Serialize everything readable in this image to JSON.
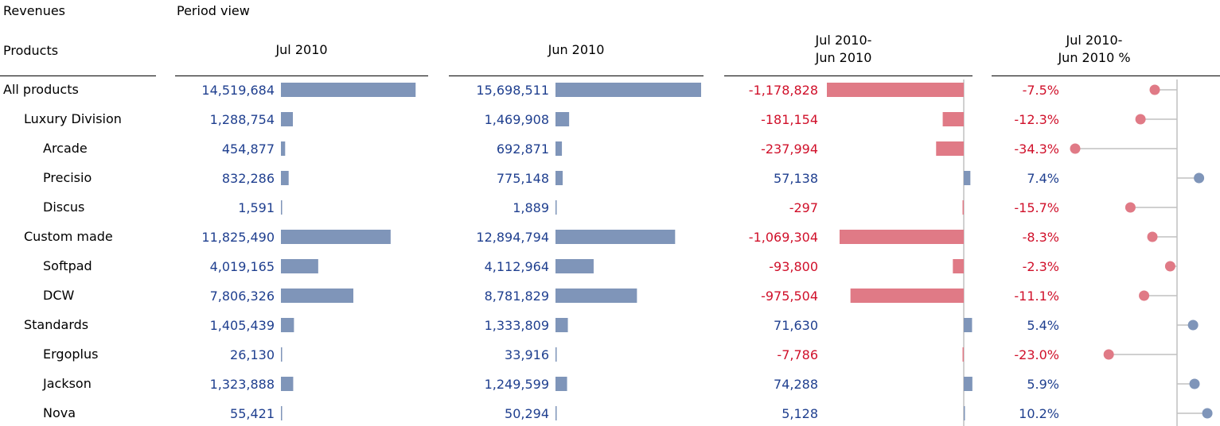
{
  "title": {
    "measure": "Revenues",
    "view": "Period view"
  },
  "header": {
    "products": "Products",
    "col1": "Jul 2010",
    "col2": "Jun 2010",
    "col3_line1": "Jul 2010-",
    "col3_line2": "Jun 2010",
    "col4_line1": "Jul 2010-",
    "col4_line2": "Jun 2010 %"
  },
  "colors": {
    "bar_blue": "#7f95b9",
    "bar_red": "#e07a86",
    "text_blue": "#1f3f8f",
    "text_red": "#d0102a",
    "axis": "#c0c0c0"
  },
  "chart_data": {
    "type": "table",
    "columns": [
      "Jul 2010",
      "Jun 2010",
      "Jul 2010-Jun 2010",
      "Jul 2010-Jun 2010 %"
    ],
    "rows": [
      {
        "label": "All products",
        "level": 0,
        "jul": 14519684,
        "jun": 15698511,
        "diff": -1178828,
        "pct": -7.5,
        "jul_text": "14,519,684",
        "jun_text": "15,698,511",
        "diff_text": "-1,178,828",
        "pct_text": "-7.5%"
      },
      {
        "label": "Luxury Division",
        "level": 1,
        "jul": 1288754,
        "jun": 1469908,
        "diff": -181154,
        "pct": -12.3,
        "jul_text": "1,288,754",
        "jun_text": "1,469,908",
        "diff_text": "-181,154",
        "pct_text": "-12.3%"
      },
      {
        "label": "Arcade",
        "level": 2,
        "jul": 454877,
        "jun": 692871,
        "diff": -237994,
        "pct": -34.3,
        "jul_text": "454,877",
        "jun_text": "692,871",
        "diff_text": "-237,994",
        "pct_text": "-34.3%"
      },
      {
        "label": "Precisio",
        "level": 2,
        "jul": 832286,
        "jun": 775148,
        "diff": 57138,
        "pct": 7.4,
        "jul_text": "832,286",
        "jun_text": "775,148",
        "diff_text": "57,138",
        "pct_text": "7.4%"
      },
      {
        "label": "Discus",
        "level": 2,
        "jul": 1591,
        "jun": 1889,
        "diff": -297,
        "pct": -15.7,
        "jul_text": "1,591",
        "jun_text": "1,889",
        "diff_text": "-297",
        "pct_text": "-15.7%"
      },
      {
        "label": "Custom made",
        "level": 1,
        "jul": 11825490,
        "jun": 12894794,
        "diff": -1069304,
        "pct": -8.3,
        "jul_text": "11,825,490",
        "jun_text": "12,894,794",
        "diff_text": "-1,069,304",
        "pct_text": "-8.3%"
      },
      {
        "label": "Softpad",
        "level": 2,
        "jul": 4019165,
        "jun": 4112964,
        "diff": -93800,
        "pct": -2.3,
        "jul_text": "4,019,165",
        "jun_text": "4,112,964",
        "diff_text": "-93,800",
        "pct_text": "-2.3%"
      },
      {
        "label": "DCW",
        "level": 2,
        "jul": 7806326,
        "jun": 8781829,
        "diff": -975504,
        "pct": -11.1,
        "jul_text": "7,806,326",
        "jun_text": "8,781,829",
        "diff_text": "-975,504",
        "pct_text": "-11.1%"
      },
      {
        "label": "Standards",
        "level": 1,
        "jul": 1405439,
        "jun": 1333809,
        "diff": 71630,
        "pct": 5.4,
        "jul_text": "1,405,439",
        "jun_text": "1,333,809",
        "diff_text": "71,630",
        "pct_text": "5.4%"
      },
      {
        "label": "Ergoplus",
        "level": 2,
        "jul": 26130,
        "jun": 33916,
        "diff": -7786,
        "pct": -23.0,
        "jul_text": "26,130",
        "jun_text": "33,916",
        "diff_text": "-7,786",
        "pct_text": "-23.0%"
      },
      {
        "label": "Jackson",
        "level": 2,
        "jul": 1323888,
        "jun": 1249599,
        "diff": 74288,
        "pct": 5.9,
        "jul_text": "1,323,888",
        "jun_text": "1,249,599",
        "diff_text": "74,288",
        "pct_text": "5.9%"
      },
      {
        "label": "Nova",
        "level": 2,
        "jul": 55421,
        "jun": 50294,
        "diff": 5128,
        "pct": 10.2,
        "jul_text": "55,421",
        "jun_text": "50,294",
        "diff_text": "5,128",
        "pct_text": "10.2%"
      }
    ]
  }
}
